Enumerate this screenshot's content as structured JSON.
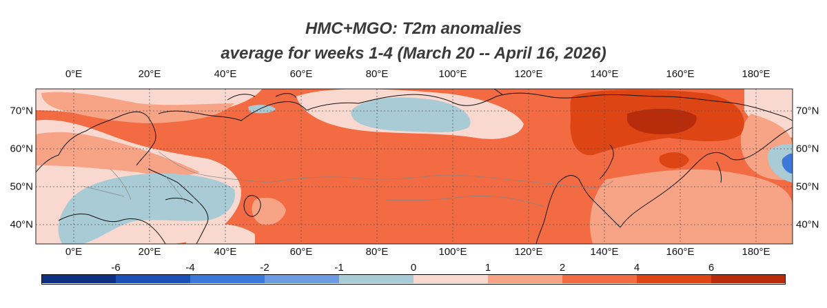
{
  "title": {
    "line1": "HMC+MGO: T2m anomalies",
    "line2": "average for weeks 1-4 (March 20 -- April 16, 2026)"
  },
  "map": {
    "lon_labels": [
      "0°E",
      "20°E",
      "40°E",
      "60°E",
      "80°E",
      "100°E",
      "120°E",
      "140°E",
      "160°E",
      "180°E"
    ],
    "lat_labels": [
      "70°N",
      "60°N",
      "50°N",
      "40°N"
    ]
  },
  "colorbar": {
    "colors": [
      "#0e2f82",
      "#1b4fb3",
      "#3b78d8",
      "#6d9be3",
      "#a9cbd6",
      "#f9d9cf",
      "#f7a385",
      "#f26b42",
      "#dd4515",
      "#b72c0a"
    ],
    "tick_labels": [
      "-6",
      "-4",
      "-2",
      "-1",
      "0",
      "1",
      "2",
      "4",
      "6"
    ]
  },
  "palette": {
    "neutral_blue": "#a9cbd6",
    "light_pink": "#f9d9cf",
    "salmon": "#f7a385",
    "orange": "#f26b42",
    "red": "#dd4515",
    "dark_red": "#b72c0a",
    "mid_blue": "#3b78d8"
  }
}
